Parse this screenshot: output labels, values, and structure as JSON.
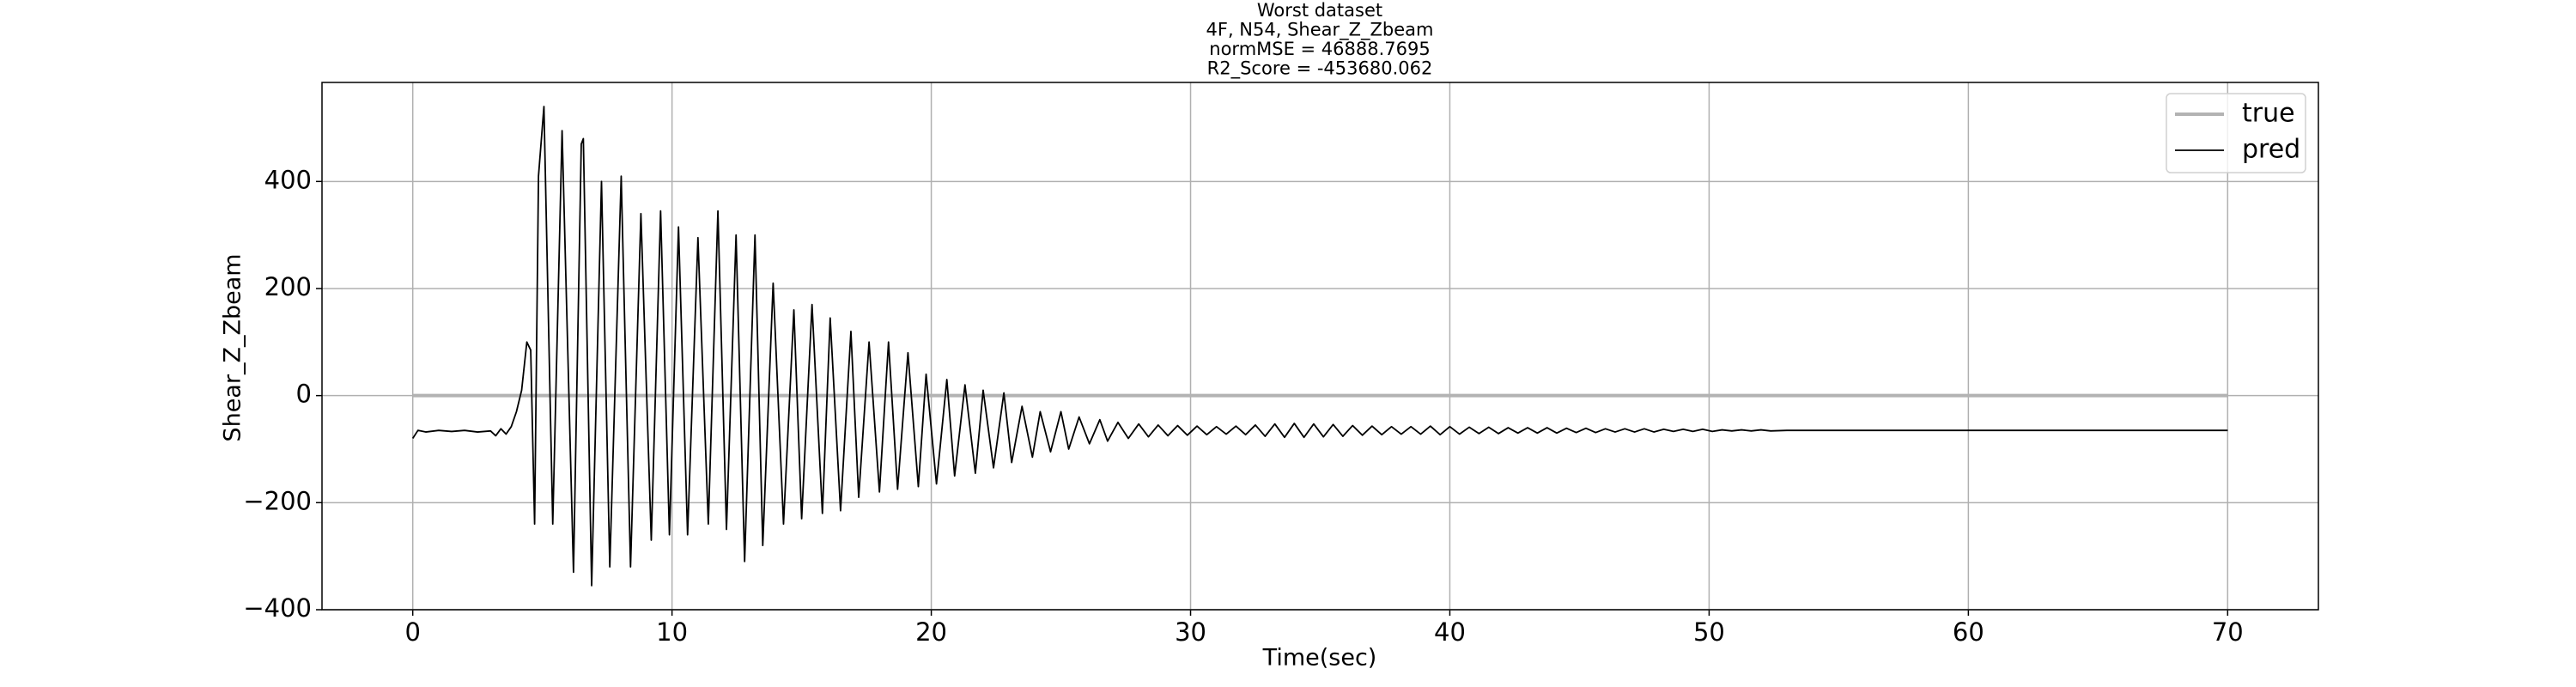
{
  "chart_data": {
    "type": "line",
    "title": [
      "Worst dataset",
      "4F, N54, Shear_Z_Zbeam",
      "normMSE = 46888.7695",
      "R2_Score = -453680.062"
    ],
    "xlabel": "Time(sec)",
    "ylabel": "Shear_Z_Zbeam",
    "xlim": [
      -3.5,
      73.5
    ],
    "ylim": [
      -400,
      585
    ],
    "xticks": [
      0,
      10,
      20,
      30,
      40,
      50,
      60,
      70
    ],
    "yticks": [
      {
        "value": -400,
        "label": "−400"
      },
      {
        "value": -200,
        "label": "−200"
      },
      0,
      200,
      400
    ],
    "grid": true,
    "legend": "upper right",
    "series": [
      {
        "name": "true",
        "color": "#b3b3b3",
        "x": [
          0,
          70
        ],
        "values": [
          0,
          0
        ]
      },
      {
        "name": "pred",
        "color": "#000000",
        "x": [
          0,
          0.2,
          0.5,
          1.0,
          1.5,
          2.0,
          2.5,
          3.0,
          3.2,
          3.4,
          3.6,
          3.8,
          4.0,
          4.2,
          4.4,
          4.55,
          4.7,
          4.85,
          5.06,
          5.4,
          5.76,
          6.2,
          6.5,
          6.58,
          6.9,
          7.28,
          7.6,
          8.04,
          8.4,
          8.8,
          9.2,
          9.56,
          9.9,
          10.25,
          10.6,
          11.0,
          11.4,
          11.77,
          12.1,
          12.47,
          12.8,
          13.2,
          13.5,
          13.9,
          14.3,
          14.7,
          15.0,
          15.4,
          15.8,
          16.1,
          16.5,
          16.9,
          17.2,
          17.6,
          18.0,
          18.35,
          18.7,
          19.1,
          19.5,
          19.8,
          20.2,
          20.6,
          20.9,
          21.3,
          21.7,
          22.0,
          22.4,
          22.8,
          23.1,
          23.5,
          23.9,
          24.2,
          24.6,
          25.0,
          25.3,
          25.7,
          26.1,
          26.5,
          26.8,
          27.2,
          27.6,
          28.0,
          28.375,
          28.75,
          29.125,
          29.5,
          29.875,
          30.25,
          30.625,
          31.0,
          31.375,
          31.75,
          32.125,
          32.5,
          32.875,
          33.25,
          33.625,
          34.0,
          34.375,
          34.75,
          35.125,
          35.5,
          35.875,
          36.25,
          36.625,
          37.0,
          37.375,
          37.75,
          38.125,
          38.5,
          38.875,
          39.25,
          39.625,
          40.0,
          40.375,
          40.75,
          41.125,
          41.5,
          41.875,
          42.25,
          42.625,
          43.0,
          43.375,
          43.75,
          44.125,
          44.5,
          44.875,
          45.25,
          45.625,
          46.0,
          46.375,
          46.75,
          47.125,
          47.5,
          47.875,
          48.25,
          48.625,
          49.0,
          49.375,
          49.75,
          50.125,
          50.5,
          50.875,
          51.25,
          51.625,
          52.0,
          52.375,
          53.0,
          60.0,
          70.0
        ],
        "values": [
          -80,
          -65,
          -68,
          -65,
          -67,
          -65,
          -68,
          -66,
          -75,
          -62,
          -72,
          -58,
          -30,
          10,
          100,
          85,
          -240,
          410,
          540,
          -240,
          495,
          -330,
          470,
          480,
          -355,
          400,
          -320,
          410,
          -320,
          340,
          -270,
          345,
          -260,
          315,
          -260,
          295,
          -240,
          345,
          -250,
          300,
          -310,
          300,
          -280,
          210,
          -240,
          160,
          -230,
          170,
          -220,
          145,
          -215,
          120,
          -190,
          100,
          -180,
          100,
          -175,
          80,
          -170,
          40,
          -165,
          30,
          -150,
          20,
          -145,
          10,
          -135,
          5,
          -125,
          -20,
          -115,
          -30,
          -105,
          -30,
          -100,
          -40,
          -90,
          -45,
          -85,
          -50,
          -80,
          -53,
          -77,
          -55,
          -75,
          -56,
          -74,
          -57,
          -73,
          -58,
          -72,
          -57,
          -73,
          -55,
          -76,
          -53,
          -78,
          -52,
          -78,
          -53,
          -77,
          -54,
          -76,
          -56,
          -74,
          -57,
          -73,
          -58,
          -72,
          -58,
          -72,
          -57,
          -73,
          -58,
          -72,
          -59,
          -71,
          -59,
          -71,
          -60,
          -70,
          -60,
          -70,
          -60,
          -70,
          -61,
          -69,
          -61,
          -69,
          -62,
          -68,
          -62,
          -68,
          -62,
          -68,
          -63,
          -67,
          -63,
          -67,
          -63,
          -67,
          -64,
          -66,
          -64,
          -66,
          -64,
          -66,
          -65,
          -65,
          -65
        ]
      }
    ]
  }
}
